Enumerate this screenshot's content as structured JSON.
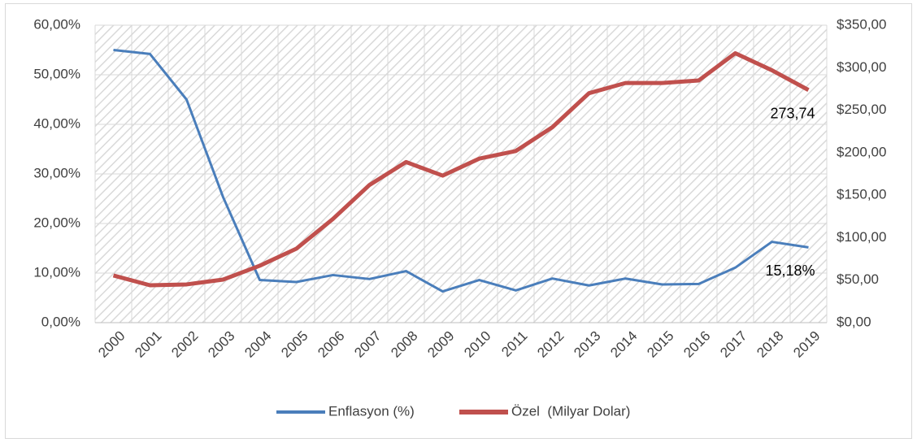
{
  "chart_data": {
    "type": "line",
    "categories": [
      "2000",
      "2001",
      "2002",
      "2003",
      "2004",
      "2005",
      "2006",
      "2007",
      "2008",
      "2009",
      "2010",
      "2011",
      "2012",
      "2013",
      "2014",
      "2015",
      "2016",
      "2017",
      "2018",
      "2019"
    ],
    "series": [
      {
        "name": "Enflasyon (%)",
        "color": "#4a7ebb",
        "axis": "y",
        "values": [
          55.0,
          54.2,
          45.0,
          25.3,
          8.6,
          8.2,
          9.6,
          8.8,
          10.4,
          6.3,
          8.6,
          6.5,
          8.9,
          7.5,
          8.9,
          7.7,
          7.8,
          11.1,
          16.3,
          15.18
        ],
        "value_labels": [
          null,
          null,
          null,
          null,
          null,
          null,
          null,
          null,
          null,
          null,
          null,
          null,
          null,
          null,
          null,
          null,
          null,
          null,
          null,
          "15,18%"
        ]
      },
      {
        "name": "Özel  (Milyar Dolar)",
        "color": "#c0504d",
        "axis": "y2",
        "values": [
          55.5,
          44,
          45,
          50.7,
          67,
          87,
          122,
          162,
          189,
          173,
          193,
          202,
          230,
          270,
          282,
          282,
          285,
          317,
          297,
          273.74
        ],
        "value_labels": [
          null,
          null,
          null,
          null,
          null,
          null,
          null,
          null,
          null,
          null,
          null,
          null,
          null,
          null,
          null,
          null,
          null,
          null,
          null,
          "273,74"
        ]
      }
    ],
    "ylim": [
      0,
      60
    ],
    "yticks": [
      {
        "value": 0,
        "label": "0,00%"
      },
      {
        "value": 10,
        "label": "10,00%"
      },
      {
        "value": 20,
        "label": "20,00%"
      },
      {
        "value": 30,
        "label": "30,00%"
      },
      {
        "value": 40,
        "label": "40,00%"
      },
      {
        "value": 50,
        "label": "50,00%"
      },
      {
        "value": 60,
        "label": "60,00%"
      }
    ],
    "y2lim": [
      0,
      350
    ],
    "y2ticks": [
      {
        "value": 0,
        "label": "$0,00"
      },
      {
        "value": 50,
        "label": "$50,00"
      },
      {
        "value": 100,
        "label": "$100,00"
      },
      {
        "value": 150,
        "label": "$150,00"
      },
      {
        "value": 200,
        "label": "$200,00"
      },
      {
        "value": 250,
        "label": "$250,00"
      },
      {
        "value": 300,
        "label": "$300,00"
      },
      {
        "value": 350,
        "label": "$350,00"
      }
    ],
    "grid": true,
    "legend": "bottom"
  }
}
